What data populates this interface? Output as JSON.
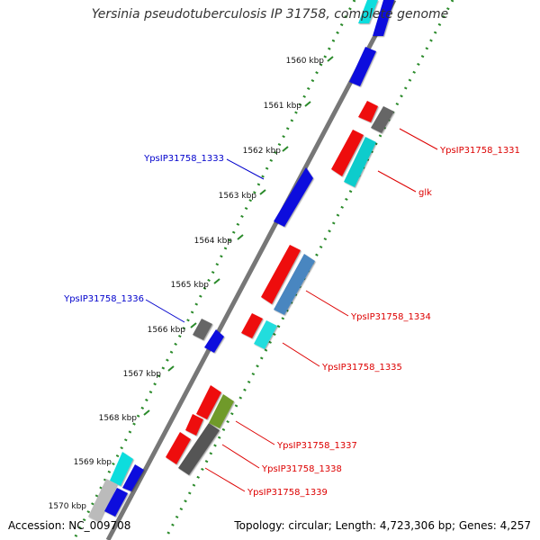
{
  "title": "Yersinia pseudotuberculosis IP 31758, complete genome",
  "accession": "Accession: NC_009708",
  "summary": "Topology: circular; Length: 4,723,306 bp; Genes: 4,257",
  "colors": {
    "backbone": "#777777",
    "tick": "#2a8a2a",
    "forward_label": "#0000cc",
    "reverse_label": "#dd0000",
    "red": "#ee1111",
    "blue": "#1111dd",
    "cyan": "#11dddd",
    "gray": "#666666",
    "steelblue": "#4a86c0",
    "olive": "#6f9a2a"
  },
  "scale": {
    "unit_label": "kbp",
    "ticks": [
      {
        "kbp": 1560,
        "label": "1560 kbp"
      },
      {
        "kbp": 1561,
        "label": "1561 kbp"
      },
      {
        "kbp": 1562,
        "label": "1562 kbp"
      },
      {
        "kbp": 1563,
        "label": "1563 kbp"
      },
      {
        "kbp": 1564,
        "label": "1564 kbp"
      },
      {
        "kbp": 1565,
        "label": "1565 kbp"
      },
      {
        "kbp": 1566,
        "label": "1566 kbp"
      },
      {
        "kbp": 1567,
        "label": "1567 kbp"
      },
      {
        "kbp": 1568,
        "label": "1568 kbp"
      },
      {
        "kbp": 1569,
        "label": "1569 kbp"
      },
      {
        "kbp": 1570,
        "label": "1570 kbp"
      }
    ]
  },
  "gene_labels": [
    {
      "text": "YpsIP31758_1331",
      "strand": "reverse"
    },
    {
      "text": "glk",
      "strand": "reverse"
    },
    {
      "text": "YpsIP31758_1333",
      "strand": "forward"
    },
    {
      "text": "YpsIP31758_1334",
      "strand": "reverse"
    },
    {
      "text": "YpsIP31758_1336",
      "strand": "forward"
    },
    {
      "text": "YpsIP31758_1335",
      "strand": "reverse"
    },
    {
      "text": "YpsIP31758_1337",
      "strand": "reverse"
    },
    {
      "text": "YpsIP31758_1338",
      "strand": "reverse"
    },
    {
      "text": "YpsIP31758_1339",
      "strand": "reverse"
    }
  ]
}
